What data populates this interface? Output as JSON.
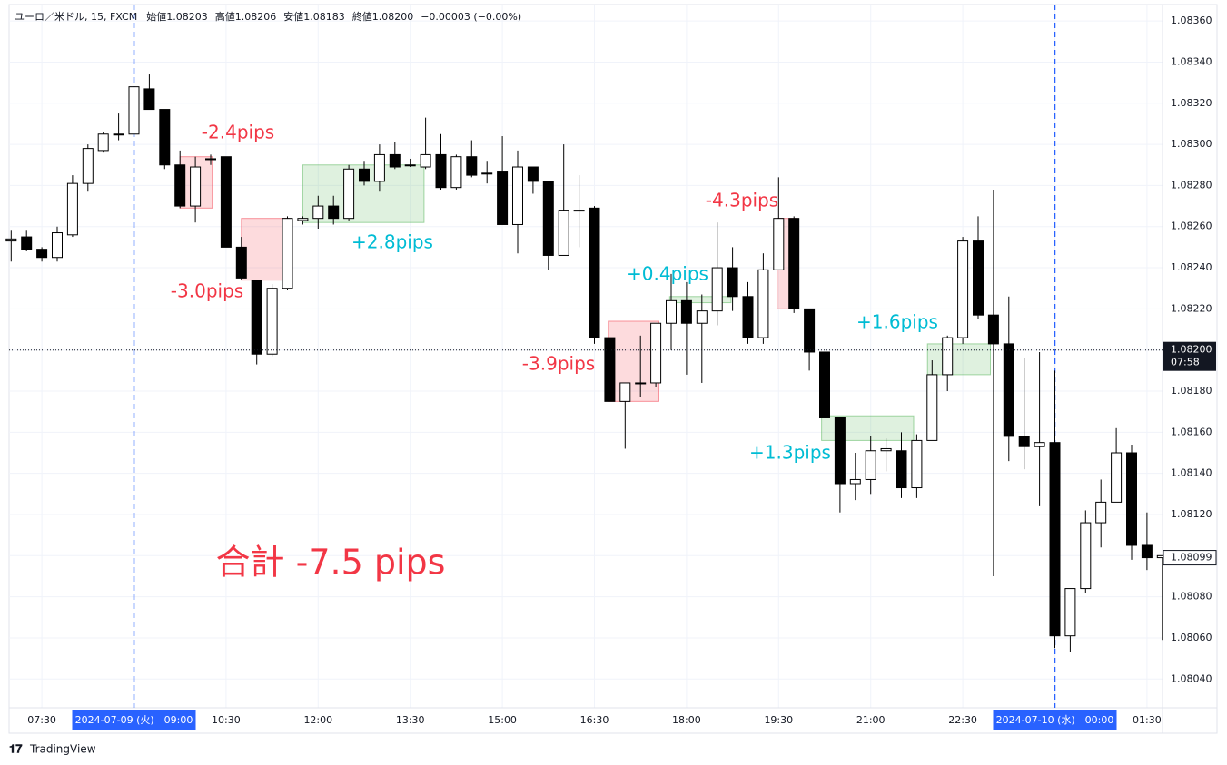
{
  "chart_data": {
    "type": "candlestick",
    "header": {
      "symbol": "ユーロ／米ドル, 15, FXCM",
      "fields": [
        {
          "label": "始値",
          "value": "1.08203"
        },
        {
          "label": "高値",
          "value": "1.08206"
        },
        {
          "label": "安値",
          "value": "1.08183"
        },
        {
          "label": "終値",
          "value": "1.08200"
        }
      ],
      "change": "−0.00003 (−0.00%)"
    },
    "categories": [
      null,
      null,
      "07:30",
      null,
      null,
      null,
      null,
      null,
      "2024-07-09 (火)　09:00",
      null,
      null,
      null,
      null,
      null,
      "10:30",
      null,
      null,
      null,
      null,
      null,
      "12:00",
      null,
      null,
      null,
      null,
      null,
      "13:30",
      null,
      null,
      null,
      null,
      null,
      "15:00",
      null,
      null,
      null,
      null,
      null,
      "16:30",
      null,
      null,
      null,
      null,
      null,
      "18:00",
      null,
      null,
      null,
      null,
      null,
      "19:30",
      null,
      null,
      null,
      null,
      null,
      "21:00",
      null,
      null,
      null,
      null,
      null,
      "22:30",
      null,
      null,
      null,
      null,
      null,
      "2024-07-10 (水)　00:00",
      null,
      null,
      null,
      null,
      null,
      "01:30",
      null
    ],
    "open": [
      1.08253,
      1.08255,
      1.08249,
      1.08245,
      1.08256,
      1.08281,
      1.08297,
      1.08305,
      1.08305,
      1.08327,
      1.08317,
      1.0829,
      1.0827,
      1.08293,
      1.08294,
      1.0825,
      1.08234,
      1.08198,
      1.0823,
      1.08263,
      1.08264,
      1.0827,
      1.08264,
      1.08288,
      1.08282,
      1.08295,
      1.0829,
      1.08289,
      1.08295,
      1.08279,
      1.08294,
      1.08286,
      1.08287,
      1.08261,
      1.08289,
      1.08282,
      1.08246,
      1.08268,
      1.08269,
      1.08206,
      1.08175,
      1.08184,
      1.08184,
      1.08213,
      1.08224,
      1.08213,
      1.08219,
      1.0824,
      1.08226,
      1.08206,
      1.08239,
      1.08264,
      1.0822,
      1.08199,
      1.08167,
      1.08135,
      1.08137,
      1.08151,
      1.08151,
      1.08133,
      1.08156,
      1.08188,
      1.08206,
      1.08253,
      1.08217,
      1.08203,
      1.08158,
      1.08153,
      1.08155,
      1.08061,
      1.08084,
      1.08116,
      1.08126,
      1.0815,
      1.08105,
      1.08099
    ],
    "high": [
      1.08258,
      1.08258,
      1.0825,
      1.0826,
      1.08285,
      1.083,
      1.08306,
      1.08315,
      1.08329,
      1.08334,
      1.08317,
      1.08297,
      1.08294,
      1.08295,
      1.08294,
      1.08255,
      1.08234,
      1.08232,
      1.08265,
      1.08265,
      1.08275,
      1.08275,
      1.0829,
      1.08292,
      1.083,
      1.08301,
      1.08293,
      1.08313,
      1.08305,
      1.08295,
      1.08302,
      1.08292,
      1.08304,
      1.08297,
      1.08289,
      1.08282,
      1.083,
      1.08285,
      1.0827,
      1.08206,
      1.08184,
      1.08207,
      1.08213,
      1.08237,
      1.08233,
      1.08227,
      1.08262,
      1.0825,
      1.08233,
      1.08247,
      1.08284,
      1.08265,
      1.0822,
      1.08199,
      1.08167,
      1.0815,
      1.08158,
      1.08157,
      1.0816,
      1.08159,
      1.08195,
      1.08207,
      1.08255,
      1.08265,
      1.08278,
      1.08226,
      1.08196,
      1.08199,
      1.0819,
      1.08084,
      1.08122,
      1.08137,
      1.08162,
      1.08154,
      1.08121,
      1.081
    ],
    "low": [
      1.08243,
      1.08248,
      1.08243,
      1.08243,
      1.08255,
      1.08277,
      1.08296,
      1.08302,
      1.08304,
      1.08317,
      1.08288,
      1.08269,
      1.08262,
      1.0829,
      1.0825,
      1.08234,
      1.08193,
      1.08197,
      1.08229,
      1.08261,
      1.08259,
      1.08261,
      1.08263,
      1.0828,
      1.08277,
      1.08288,
      1.08289,
      1.08288,
      1.08278,
      1.08278,
      1.08284,
      1.08281,
      1.08261,
      1.08247,
      1.08276,
      1.08239,
      1.08246,
      1.0825,
      1.08203,
      1.08175,
      1.08152,
      1.08177,
      1.08182,
      1.082,
      1.08188,
      1.08184,
      1.08212,
      1.08219,
      1.08203,
      1.08203,
      1.08239,
      1.08218,
      1.0819,
      1.08167,
      1.08121,
      1.08127,
      1.0813,
      1.08141,
      1.08128,
      1.08128,
      1.08156,
      1.0818,
      1.08203,
      1.08215,
      1.0809,
      1.08146,
      1.08142,
      1.08124,
      1.08055,
      1.08053,
      1.08082,
      1.08104,
      1.08126,
      1.08098,
      1.08093,
      1.08059
    ],
    "close": [
      1.08254,
      1.08249,
      1.08245,
      1.08257,
      1.08281,
      1.08298,
      1.08305,
      1.08305,
      1.08328,
      1.08317,
      1.0829,
      1.0827,
      1.08289,
      1.08293,
      1.0825,
      1.08235,
      1.08198,
      1.0823,
      1.08264,
      1.08264,
      1.0827,
      1.08264,
      1.08288,
      1.08282,
      1.08295,
      1.08289,
      1.0829,
      1.08295,
      1.08279,
      1.08294,
      1.08285,
      1.08286,
      1.08261,
      1.08289,
      1.08282,
      1.08246,
      1.08268,
      1.08268,
      1.08206,
      1.08175,
      1.08184,
      1.08184,
      1.08213,
      1.08224,
      1.08213,
      1.08219,
      1.0824,
      1.08226,
      1.08206,
      1.08239,
      1.08264,
      1.0822,
      1.08199,
      1.08167,
      1.08135,
      1.08137,
      1.08151,
      1.08152,
      1.08133,
      1.08156,
      1.08188,
      1.08206,
      1.08253,
      1.08217,
      1.08203,
      1.08158,
      1.08153,
      1.08155,
      1.08061,
      1.08084,
      1.08116,
      1.08126,
      1.0815,
      1.08105,
      1.08099,
      1.081
    ],
    "ylim": [
      1.08026,
      1.08368
    ],
    "yticks": [
      {
        "value": 1.0804,
        "label": "1.08040"
      },
      {
        "value": 1.0806,
        "label": "1.08060"
      },
      {
        "value": 1.0808,
        "label": "1.08080"
      },
      {
        "value": 1.081,
        "label": "1.08100"
      },
      {
        "value": 1.0812,
        "label": "1.08120"
      },
      {
        "value": 1.0814,
        "label": "1.08140"
      },
      {
        "value": 1.0816,
        "label": "1.08160"
      },
      {
        "value": 1.0818,
        "label": "1.08180"
      },
      {
        "value": 1.082,
        "label": "1.08200"
      },
      {
        "value": 1.0822,
        "label": "1.08220"
      },
      {
        "value": 1.0824,
        "label": "1.08240"
      },
      {
        "value": 1.0826,
        "label": "1.08260"
      },
      {
        "value": 1.0828,
        "label": "1.08280"
      },
      {
        "value": 1.083,
        "label": "1.08300"
      },
      {
        "value": 1.0832,
        "label": "1.08320"
      },
      {
        "value": 1.0834,
        "label": "1.08340"
      },
      {
        "value": 1.0836,
        "label": "1.08360"
      }
    ],
    "grid": true,
    "last_price": {
      "value": 1.082,
      "label": "1.08200"
    },
    "countdown": "07:58",
    "price_marker": 1.08099,
    "annotations": [
      {
        "text": "-2.4pips",
        "color": "#f23645",
        "box_color": "#f23645",
        "from": 11,
        "to": 13.1,
        "low": 1.08269,
        "high": 1.08294
      },
      {
        "text": "-3.0pips",
        "color": "#f23645",
        "box_color": "#f23645",
        "from": 15,
        "to": 18.1,
        "low": 1.08234,
        "high": 1.08264
      },
      {
        "text": "+2.8pips",
        "color": "#00bcd4",
        "box_color": "#4caf50",
        "from": 19,
        "to": 26.9,
        "low": 1.08262,
        "high": 1.0829
      },
      {
        "text": "-3.9pips",
        "color": "#f23645",
        "box_color": "#f23645",
        "from": 38.9,
        "to": 42.2,
        "low": 1.08175,
        "high": 1.08214
      },
      {
        "text": "+0.4pips",
        "color": "#00bcd4",
        "box_color": "#4caf50",
        "from": 42.9,
        "to": 46.9,
        "low": 1.08223,
        "high": 1.08226
      },
      {
        "text": "-4.3pips",
        "color": "#f23645",
        "box_color": "#f23645",
        "from": 49.9,
        "to": 51.2,
        "low": 1.0822,
        "high": 1.08264
      },
      {
        "text": "+1.6pips",
        "color": "#00bcd4",
        "box_color": "#4caf50",
        "from": 59.7,
        "to": 63.8,
        "low": 1.08188,
        "high": 1.08203
      },
      {
        "text": "+1.3pips",
        "color": "#00bcd4",
        "box_color": "#4caf50",
        "from": 52.8,
        "to": 58.8,
        "low": 1.08156,
        "high": 1.08168
      }
    ],
    "total": "合計 -7.5 pips",
    "total_color": "#f23645",
    "footer": "TradingView"
  }
}
